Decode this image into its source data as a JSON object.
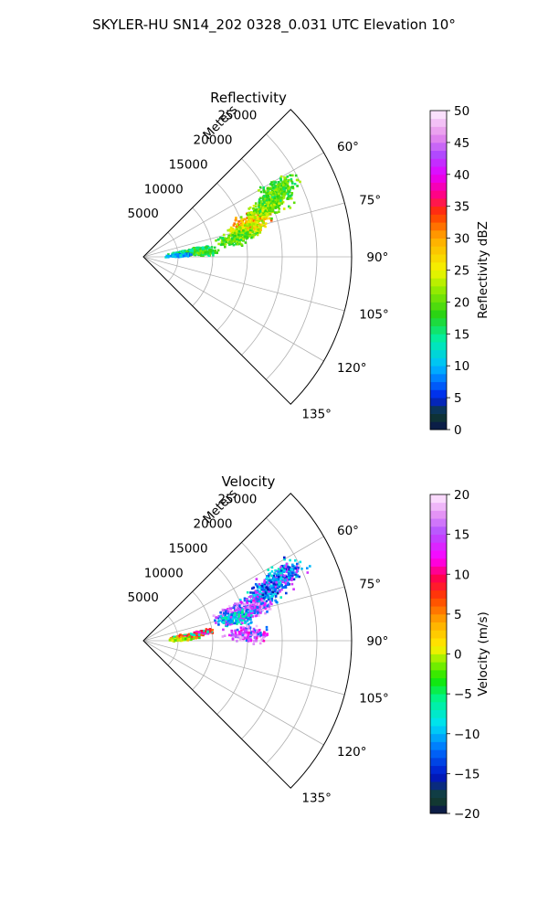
{
  "suptitle": "SKYLER-HU  SN14_202  0328_0.031 UTC Elevation 10°",
  "chart_data": [
    {
      "type": "heatmap",
      "projection": "polar-sector",
      "title": "Reflectivity",
      "range_label": "Meters",
      "theta_range_deg": [
        45,
        135
      ],
      "r_range": [
        0,
        30000
      ],
      "r_ticks": [
        5000,
        10000,
        15000,
        20000,
        25000
      ],
      "r_tick_labels": [
        "5000",
        "10000",
        "15000",
        "20000",
        "25000"
      ],
      "theta_ticks_deg": [
        60,
        75,
        90,
        105,
        120,
        135
      ],
      "theta_tick_labels": [
        "60°",
        "75°",
        "90°",
        "105°",
        "120°",
        "135°"
      ],
      "grid": true,
      "colorbar": {
        "label": "Reflectivity dBZ",
        "range": [
          0,
          50
        ],
        "ticks": [
          0,
          5,
          10,
          15,
          20,
          25,
          30,
          35,
          40,
          45,
          50
        ],
        "tick_labels": [
          "0",
          "5",
          "10",
          "15",
          "20",
          "25",
          "30",
          "35",
          "40",
          "45",
          "50"
        ],
        "colormap": "pyart_NWSRef-like"
      },
      "echo_regions": [
        {
          "theta_deg": 71,
          "r": 16500,
          "value": 30
        },
        {
          "theta_deg": 68,
          "r": 18500,
          "value": 22
        },
        {
          "theta_deg": 74,
          "r": 15000,
          "value": 25
        },
        {
          "theta_deg": 66,
          "r": 20500,
          "value": 20
        },
        {
          "theta_deg": 78,
          "r": 13500,
          "value": 20
        },
        {
          "theta_deg": 63,
          "r": 22000,
          "value": 19
        },
        {
          "theta_deg": 84,
          "r": 6500,
          "value": 17
        },
        {
          "theta_deg": 82,
          "r": 5500,
          "value": 14
        },
        {
          "theta_deg": 86,
          "r": 5000,
          "value": 10
        },
        {
          "theta_deg": 81,
          "r": 8000,
          "value": 16
        },
        {
          "theta_deg": 85,
          "r": 9000,
          "value": 18
        }
      ]
    },
    {
      "type": "heatmap",
      "projection": "polar-sector",
      "title": "Velocity",
      "range_label": "Meters",
      "theta_range_deg": [
        45,
        135
      ],
      "r_range": [
        0,
        30000
      ],
      "r_ticks": [
        5000,
        10000,
        15000,
        20000,
        25000
      ],
      "r_tick_labels": [
        "5000",
        "10000",
        "15000",
        "20000",
        "25000"
      ],
      "theta_ticks_deg": [
        60,
        75,
        90,
        105,
        120,
        135
      ],
      "theta_tick_labels": [
        "60°",
        "75°",
        "90°",
        "105°",
        "120°",
        "135°"
      ],
      "grid": true,
      "colorbar": {
        "label": "Velocity (m/s)",
        "range": [
          -20,
          20
        ],
        "ticks": [
          -20,
          -15,
          -10,
          -5,
          0,
          5,
          10,
          15,
          20
        ],
        "tick_labels": [
          "−20",
          "−15",
          "−10",
          "−5",
          "0",
          "5",
          "10",
          "15",
          "20"
        ],
        "colormap": "pyart_BuDRd-like"
      },
      "echo_regions": [
        {
          "theta_deg": 69,
          "r": 18000,
          "value": -11
        },
        {
          "theta_deg": 66,
          "r": 20000,
          "value": -12
        },
        {
          "theta_deg": 73,
          "r": 16500,
          "value": 15
        },
        {
          "theta_deg": 71,
          "r": 14000,
          "value": 16
        },
        {
          "theta_deg": 76,
          "r": 13500,
          "value": -9
        },
        {
          "theta_deg": 64,
          "r": 22500,
          "value": -11
        },
        {
          "theta_deg": 84,
          "r": 6500,
          "value": 5
        },
        {
          "theta_deg": 82,
          "r": 5500,
          "value": 7
        },
        {
          "theta_deg": 86,
          "r": 5000,
          "value": 1
        },
        {
          "theta_deg": 81,
          "r": 8500,
          "value": 9
        },
        {
          "theta_deg": 86,
          "r": 15000,
          "value": 15
        }
      ]
    }
  ]
}
